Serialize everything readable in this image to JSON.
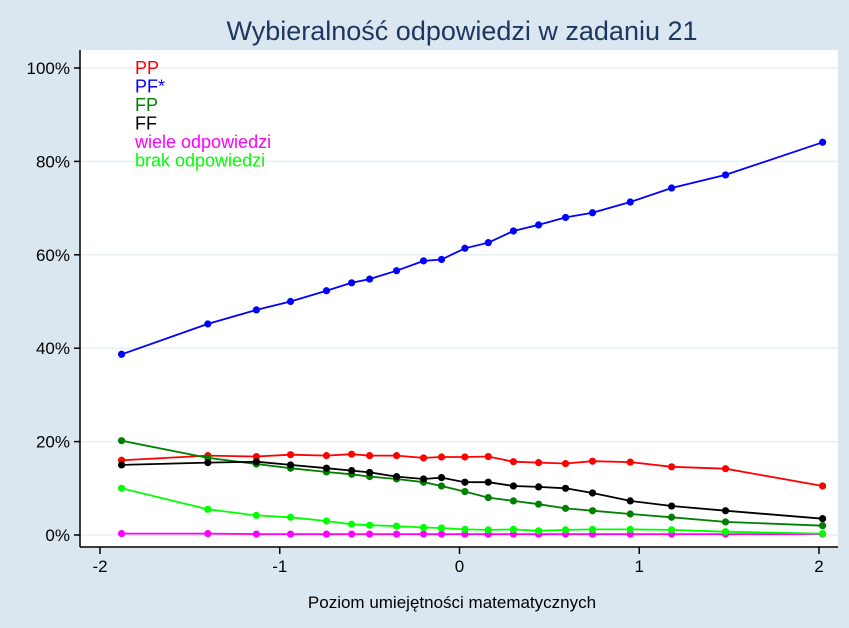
{
  "chart_data": {
    "type": "line",
    "title": "Wybieralność odpowiedzi w zadaniu 21",
    "xlabel": "Poziom umiejętności matematycznych",
    "ylabel": "",
    "xlim": [
      -2.05,
      2.05
    ],
    "ylim": [
      0,
      1.0
    ],
    "xticks": [
      {
        "value": -2,
        "label": "-2"
      },
      {
        "value": -1,
        "label": "-1"
      },
      {
        "value": 0,
        "label": "0"
      },
      {
        "value": 1,
        "label": "1"
      },
      {
        "value": 2,
        "label": "2"
      }
    ],
    "yticks": [
      {
        "value": 0,
        "label": "0%"
      },
      {
        "value": 0.2,
        "label": "20%"
      },
      {
        "value": 0.4,
        "label": "40%"
      },
      {
        "value": 0.6,
        "label": "60%"
      },
      {
        "value": 0.8,
        "label": "80%"
      },
      {
        "value": 1.0,
        "label": "100%"
      }
    ],
    "grid": true,
    "legend_position": "top-left inside",
    "x": [
      -1.88,
      -1.4,
      -1.13,
      -0.94,
      -0.74,
      -0.6,
      -0.5,
      -0.35,
      -0.2,
      -0.1,
      0.03,
      0.16,
      0.3,
      0.44,
      0.59,
      0.74,
      0.95,
      1.18,
      1.48,
      2.02
    ],
    "series": [
      {
        "name": "PP",
        "color": "#ff0000",
        "values": [
          0.16,
          0.17,
          0.168,
          0.172,
          0.17,
          0.173,
          0.17,
          0.17,
          0.165,
          0.167,
          0.167,
          0.168,
          0.157,
          0.155,
          0.153,
          0.158,
          0.156,
          0.146,
          0.142,
          0.105
        ]
      },
      {
        "name": "PF*",
        "color": "#0000ff",
        "values": [
          0.387,
          0.452,
          0.482,
          0.5,
          0.523,
          0.54,
          0.548,
          0.566,
          0.587,
          0.59,
          0.614,
          0.626,
          0.651,
          0.664,
          0.68,
          0.69,
          0.713,
          0.743,
          0.771,
          0.841
        ]
      },
      {
        "name": "FP",
        "color": "#008000",
        "values": [
          0.202,
          0.165,
          0.152,
          0.143,
          0.135,
          0.13,
          0.125,
          0.12,
          0.113,
          0.105,
          0.093,
          0.08,
          0.073,
          0.066,
          0.057,
          0.052,
          0.045,
          0.038,
          0.028,
          0.02
        ]
      },
      {
        "name": "FF",
        "color": "#000000",
        "values": [
          0.15,
          0.155,
          0.157,
          0.15,
          0.143,
          0.138,
          0.134,
          0.125,
          0.12,
          0.123,
          0.113,
          0.113,
          0.105,
          0.103,
          0.1,
          0.09,
          0.073,
          0.062,
          0.052,
          0.035
        ]
      },
      {
        "name": "wiele odpowiedzi",
        "color": "#ff00ff",
        "values": [
          0.003,
          0.003,
          0.002,
          0.002,
          0.002,
          0.002,
          0.002,
          0.002,
          0.002,
          0.002,
          0.002,
          0.002,
          0.002,
          0.002,
          0.002,
          0.002,
          0.002,
          0.002,
          0.002,
          0.002
        ]
      },
      {
        "name": "brak odpowiedzi",
        "color": "#00ff00",
        "values": [
          0.1,
          0.055,
          0.042,
          0.038,
          0.03,
          0.023,
          0.021,
          0.019,
          0.016,
          0.015,
          0.012,
          0.011,
          0.012,
          0.009,
          0.011,
          0.012,
          0.012,
          0.011,
          0.007,
          0.003
        ]
      }
    ]
  }
}
